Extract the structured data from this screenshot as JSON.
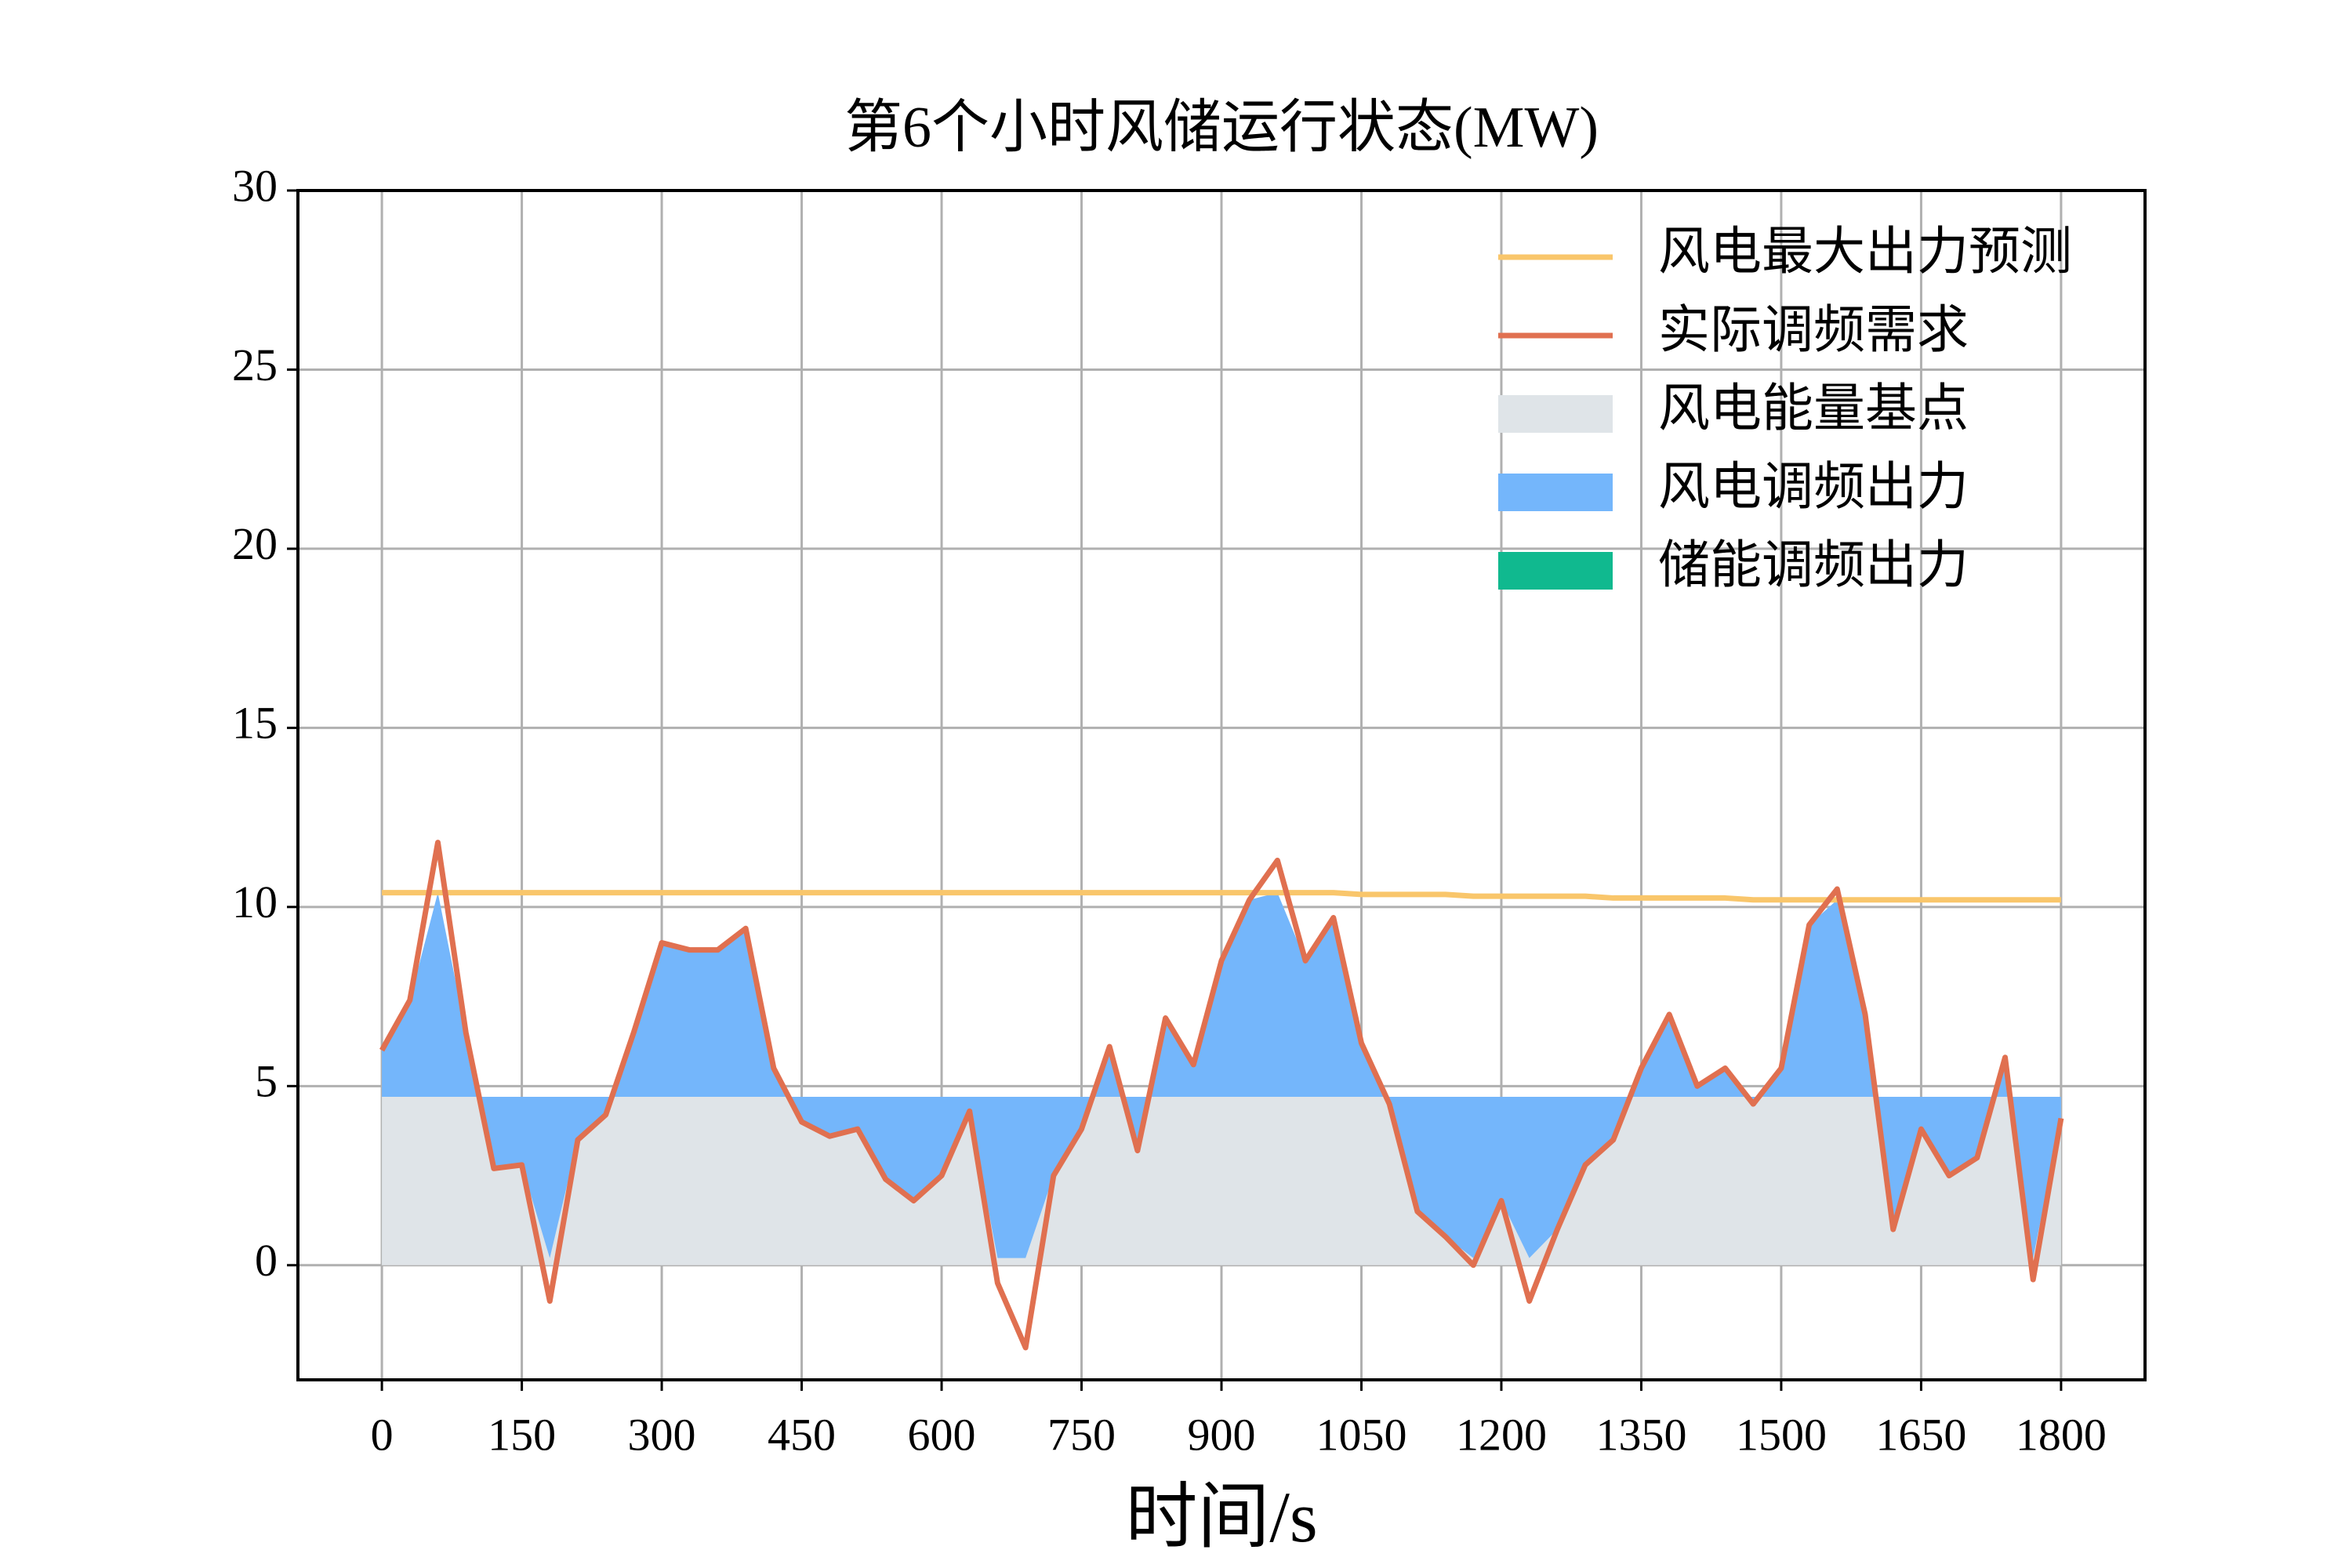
{
  "chart_data": {
    "type": "line",
    "title": "第6个小时风储运行状态(MW)",
    "x_label": "时间/s",
    "x": [
      0,
      30,
      60,
      90,
      120,
      150,
      180,
      210,
      240,
      270,
      300,
      330,
      360,
      390,
      420,
      450,
      480,
      510,
      540,
      570,
      600,
      630,
      660,
      690,
      720,
      750,
      780,
      810,
      840,
      870,
      900,
      930,
      960,
      990,
      1020,
      1050,
      1080,
      1110,
      1140,
      1170,
      1200,
      1230,
      1260,
      1290,
      1320,
      1350,
      1380,
      1410,
      1440,
      1470,
      1500,
      1530,
      1560,
      1590,
      1620,
      1650,
      1680,
      1710,
      1740,
      1770,
      1800
    ],
    "xlim": [
      -90,
      1890
    ],
    "xticks": [
      0,
      150,
      300,
      450,
      600,
      750,
      900,
      1050,
      1200,
      1350,
      1500,
      1650,
      1800
    ],
    "ylim": [
      -3.2,
      30
    ],
    "yticks": [
      0,
      5,
      10,
      15,
      20,
      25,
      30
    ],
    "grid": true,
    "legend": "upper right",
    "series": [
      {
        "name": "风电最大出力预测",
        "color": "#f9c66b",
        "style": "line",
        "values": [
          10.4,
          10.4,
          10.4,
          10.4,
          10.4,
          10.4,
          10.4,
          10.4,
          10.4,
          10.4,
          10.4,
          10.4,
          10.4,
          10.4,
          10.4,
          10.4,
          10.4,
          10.4,
          10.4,
          10.4,
          10.4,
          10.4,
          10.4,
          10.4,
          10.4,
          10.4,
          10.4,
          10.4,
          10.4,
          10.4,
          10.4,
          10.4,
          10.4,
          10.4,
          10.4,
          10.35,
          10.35,
          10.35,
          10.35,
          10.3,
          10.3,
          10.3,
          10.3,
          10.3,
          10.25,
          10.25,
          10.25,
          10.25,
          10.25,
          10.2,
          10.2,
          10.2,
          10.2,
          10.2,
          10.2,
          10.2,
          10.2,
          10.2,
          10.2,
          10.2,
          10.2
        ]
      },
      {
        "name": "实际调频需求",
        "color": "#e07050",
        "style": "line",
        "values": [
          6.0,
          7.4,
          11.8,
          6.5,
          2.7,
          2.8,
          -1.0,
          3.5,
          4.2,
          6.5,
          9.0,
          8.8,
          8.8,
          9.4,
          5.5,
          4.0,
          3.6,
          3.8,
          2.4,
          1.8,
          2.5,
          4.3,
          -0.5,
          -2.3,
          2.5,
          3.8,
          6.1,
          3.2,
          6.9,
          5.6,
          8.5,
          10.2,
          11.3,
          8.5,
          9.7,
          6.2,
          4.5,
          1.5,
          0.8,
          0.0,
          1.8,
          -1.0,
          1.0,
          2.8,
          3.5,
          5.5,
          7.0,
          5.0,
          5.5,
          4.5,
          5.5,
          9.5,
          10.5,
          7.0,
          1.0,
          3.8,
          2.5,
          3.0,
          5.8,
          -0.4,
          4.1
        ]
      },
      {
        "name": "风电能量基点",
        "color": "#dfe4e8",
        "style": "fill",
        "values": [
          4.7,
          4.7,
          4.7,
          4.7,
          4.7,
          4.7,
          4.7,
          4.7,
          4.7,
          4.7,
          4.7,
          4.7,
          4.7,
          4.7,
          4.7,
          4.7,
          4.7,
          4.7,
          4.7,
          4.7,
          4.7,
          4.7,
          4.7,
          4.7,
          4.7,
          4.7,
          4.7,
          4.7,
          4.7,
          4.7,
          4.7,
          4.7,
          4.7,
          4.7,
          4.7,
          4.7,
          4.7,
          4.7,
          4.7,
          4.7,
          4.7,
          4.7,
          4.7,
          4.7,
          4.7,
          4.7,
          4.7,
          4.7,
          4.7,
          4.7,
          4.7,
          4.7,
          4.7,
          4.7,
          4.7,
          4.7,
          4.7,
          4.7,
          4.7,
          4.7,
          4.7
        ]
      },
      {
        "name": "风电调频出力",
        "color": "#74b6fb",
        "style": "stack",
        "values": [
          1.3,
          2.7,
          5.7,
          1.8,
          -2.0,
          -1.9,
          -4.5,
          -1.2,
          -0.5,
          1.8,
          4.3,
          4.1,
          4.1,
          4.7,
          0.8,
          -0.7,
          -1.1,
          -0.9,
          -2.3,
          -2.9,
          -2.2,
          -0.4,
          -4.5,
          -4.5,
          -2.2,
          -0.9,
          1.4,
          -1.5,
          2.2,
          0.9,
          3.8,
          5.5,
          5.7,
          3.8,
          5.0,
          1.5,
          -0.2,
          -3.2,
          -3.9,
          -4.5,
          -2.9,
          -4.5,
          -3.7,
          -1.9,
          -1.2,
          0.8,
          2.3,
          0.3,
          0.8,
          -0.2,
          0.8,
          4.8,
          5.5,
          2.3,
          -3.7,
          -0.9,
          -2.2,
          -1.7,
          1.1,
          -4.5,
          -0.6
        ]
      },
      {
        "name": "储能调频出力",
        "color": "#10b98f",
        "style": "stack",
        "values": [
          0,
          0,
          0,
          0,
          0,
          0,
          0,
          0,
          0,
          0,
          0,
          0,
          0,
          0,
          0,
          0,
          0,
          0,
          0,
          0,
          0,
          0,
          0,
          0,
          0,
          0,
          0,
          0,
          0,
          0,
          0,
          0,
          0,
          0,
          0,
          0,
          0,
          0,
          0,
          0,
          0,
          0,
          0,
          0,
          0,
          0,
          0,
          0,
          0,
          0,
          0,
          0,
          0,
          0,
          0,
          0,
          0,
          0,
          0,
          0,
          0
        ]
      }
    ]
  }
}
